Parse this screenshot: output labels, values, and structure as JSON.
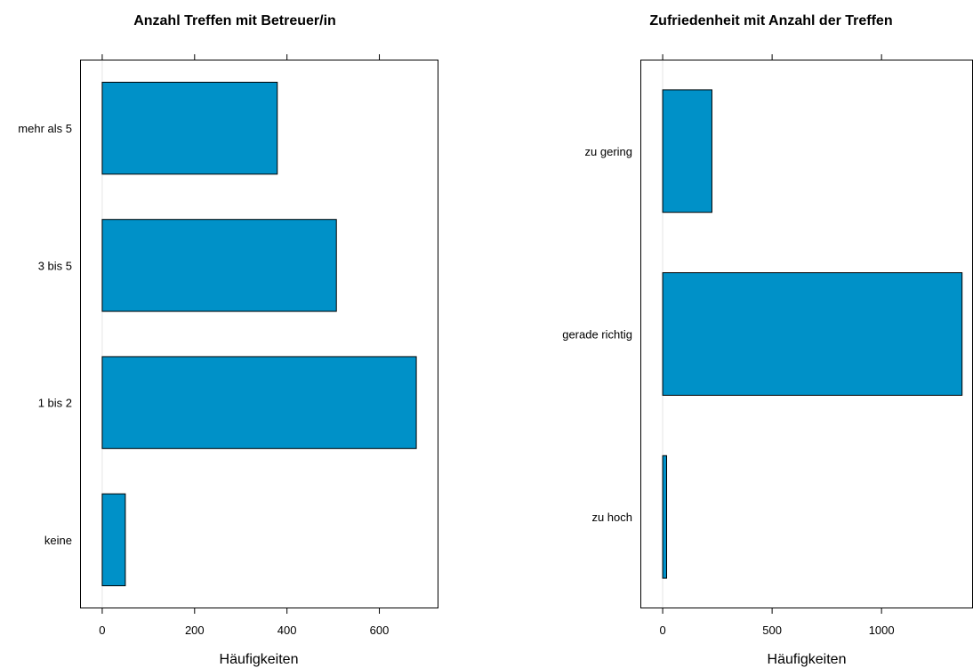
{
  "bar_color": "#0091c8",
  "chart_data": [
    {
      "type": "bar",
      "orientation": "horizontal",
      "title": "Anzahl Treffen mit Betreuer/in",
      "xlabel": "Häufigkeiten",
      "ylabel": "",
      "categories": [
        "keine",
        "1 bis 2",
        "3 bis 5",
        "mehr als 5"
      ],
      "values": [
        50,
        680,
        507,
        379
      ],
      "xlim": [
        -48,
        728
      ],
      "xticks": [
        0,
        200,
        400,
        600
      ],
      "xtick_labels": [
        "0",
        "200",
        "400",
        "600"
      ],
      "grid": false
    },
    {
      "type": "bar",
      "orientation": "horizontal",
      "title": "Zufriedenheit mit Anzahl der Treffen",
      "xlabel": "Häufigkeiten",
      "ylabel": "",
      "categories": [
        "zu hoch",
        "gerade richtig",
        "zu gering"
      ],
      "values": [
        18,
        1368,
        225
      ],
      "xlim": [
        -102,
        1418
      ],
      "xticks": [
        0,
        500,
        1000
      ],
      "xtick_labels": [
        "0",
        "500",
        "1000"
      ],
      "grid": false
    }
  ]
}
